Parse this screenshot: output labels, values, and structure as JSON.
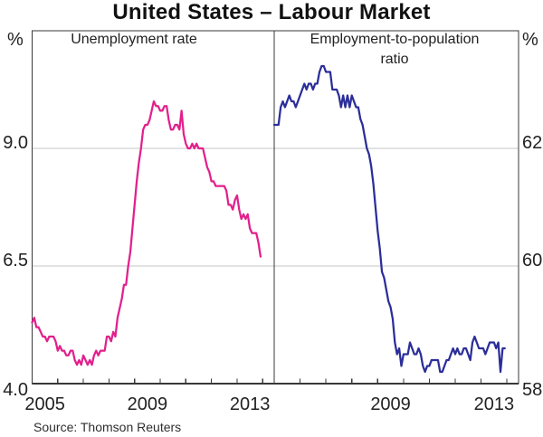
{
  "title": "United States – Labour Market",
  "source_note": "Source: Thomson Reuters",
  "unit_left": "%",
  "unit_right": "%",
  "panels": {
    "left": {
      "heading_lines": [
        "Unemployment rate",
        ""
      ]
    },
    "right": {
      "heading_lines": [
        "Employment-to-population",
        "ratio"
      ]
    }
  },
  "colors": {
    "unemployment_line": "#E2208C",
    "employment_line": "#2B2E99",
    "grid": "#C6C6C6",
    "frame": "#383838",
    "text": "#1E1E1E"
  },
  "chart_data": [
    {
      "type": "line",
      "panel": "left",
      "title": "Unemployment rate",
      "ylabel": "%",
      "frequency": "monthly",
      "x_start_year": 2005,
      "xlim": [
        2005,
        2014.45
      ],
      "ylim": [
        4.0,
        11.5
      ],
      "grid": true,
      "ytick_values": [
        4.0,
        6.5,
        9.0
      ],
      "ytick_labels": [
        "4.0",
        "6.5",
        "9.0"
      ],
      "xtick_years": [
        2006,
        2007,
        2008,
        2009,
        2010,
        2011,
        2012,
        2013,
        2014
      ],
      "xlabel_years": [
        {
          "label": "2005",
          "center": 2005.5
        },
        {
          "label": "2009",
          "center": 2009.5
        },
        {
          "label": "2013",
          "center": 2013.5
        }
      ],
      "series": [
        {
          "name": "US unemployment rate (per cent, monthly)",
          "color": "#E2208C",
          "values": [
            5.3,
            5.4,
            5.2,
            5.2,
            5.1,
            5.0,
            5.0,
            4.9,
            5.0,
            5.0,
            5.0,
            4.9,
            4.7,
            4.8,
            4.7,
            4.7,
            4.6,
            4.6,
            4.7,
            4.7,
            4.5,
            4.4,
            4.5,
            4.4,
            4.6,
            4.5,
            4.4,
            4.5,
            4.4,
            4.6,
            4.7,
            4.6,
            4.7,
            4.7,
            4.7,
            5.0,
            5.0,
            4.9,
            5.1,
            5.0,
            5.4,
            5.6,
            5.8,
            6.1,
            6.1,
            6.5,
            6.8,
            7.3,
            7.8,
            8.3,
            8.7,
            9.0,
            9.4,
            9.5,
            9.5,
            9.6,
            9.8,
            10.0,
            9.9,
            9.9,
            9.8,
            9.8,
            9.9,
            9.9,
            9.6,
            9.4,
            9.4,
            9.5,
            9.5,
            9.4,
            9.8,
            9.3,
            9.1,
            9.0,
            9.0,
            9.1,
            9.0,
            9.1,
            9.0,
            9.0,
            9.0,
            8.8,
            8.6,
            8.5,
            8.3,
            8.3,
            8.2,
            8.2,
            8.2,
            8.2,
            8.2,
            8.1,
            7.8,
            7.8,
            7.7,
            7.9,
            8.0,
            7.7,
            7.5,
            7.6,
            7.5,
            7.6,
            7.3,
            7.2,
            7.2,
            7.2,
            7.0,
            6.7
          ]
        }
      ]
    },
    {
      "type": "line",
      "panel": "right",
      "title": "Employment-to-population ratio",
      "ylabel": "%",
      "frequency": "monthly",
      "x_start_year": 2005,
      "xlim": [
        2005,
        2014.45
      ],
      "ylim": [
        58,
        64
      ],
      "grid": true,
      "ytick_values": [
        58,
        60,
        62
      ],
      "ytick_labels": [
        "58",
        "60",
        "62"
      ],
      "xtick_years": [
        2006,
        2007,
        2008,
        2009,
        2010,
        2011,
        2012,
        2013,
        2014
      ],
      "xlabel_years": [
        {
          "label": "2009",
          "center": 2009.5
        },
        {
          "label": "2013",
          "center": 2013.5
        }
      ],
      "series": [
        {
          "name": "US employment-to-population ratio (per cent, monthly)",
          "color": "#2B2E99",
          "values": [
            62.4,
            62.4,
            62.4,
            62.7,
            62.8,
            62.7,
            62.8,
            62.9,
            62.8,
            62.8,
            62.7,
            62.8,
            62.9,
            63.0,
            63.1,
            63.0,
            63.1,
            63.1,
            63.0,
            63.1,
            63.1,
            63.3,
            63.4,
            63.4,
            63.3,
            63.3,
            63.3,
            63.0,
            63.0,
            63.0,
            62.9,
            62.7,
            62.9,
            62.7,
            62.9,
            62.7,
            62.9,
            62.8,
            62.7,
            62.7,
            62.5,
            62.4,
            62.2,
            62.0,
            61.9,
            61.7,
            61.4,
            61.0,
            60.6,
            60.3,
            59.9,
            59.8,
            59.6,
            59.4,
            59.3,
            59.1,
            58.7,
            58.5,
            58.6,
            58.3,
            58.5,
            58.5,
            58.5,
            58.7,
            58.6,
            58.5,
            58.5,
            58.6,
            58.5,
            58.3,
            58.2,
            58.3,
            58.3,
            58.4,
            58.4,
            58.4,
            58.4,
            58.2,
            58.2,
            58.3,
            58.4,
            58.4,
            58.5,
            58.6,
            58.5,
            58.6,
            58.5,
            58.5,
            58.6,
            58.6,
            58.5,
            58.4,
            58.7,
            58.8,
            58.7,
            58.6,
            58.6,
            58.6,
            58.5,
            58.6,
            58.7,
            58.7,
            58.7,
            58.6,
            58.7,
            58.2,
            58.6,
            58.6
          ]
        }
      ]
    }
  ]
}
